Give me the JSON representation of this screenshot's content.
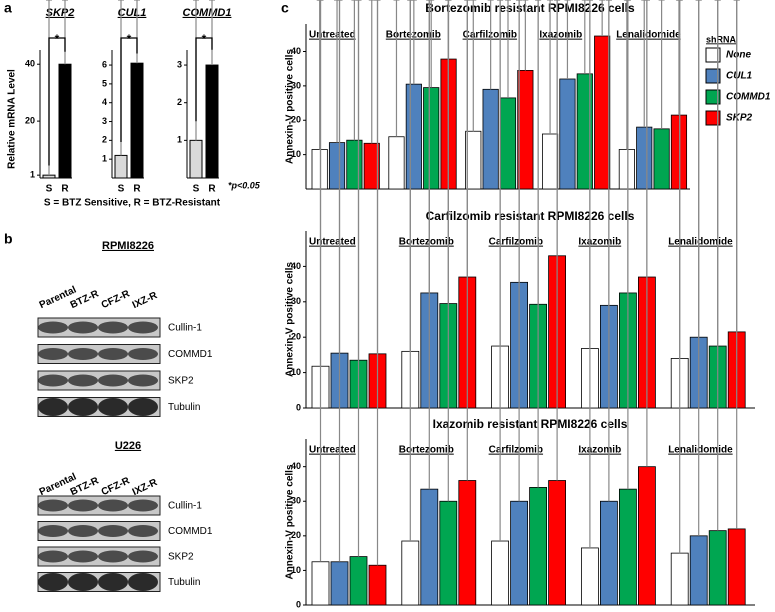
{
  "figure": {
    "panel_labels": [
      "a",
      "b",
      "c"
    ],
    "note": "*p<0.05",
    "footnote": "S = BTZ Sensitive, R = BTZ-Resistant"
  },
  "western_blot": {
    "lanes": [
      "Parental",
      "BTZ-R",
      "CFZ-R",
      "IXZ-R"
    ],
    "panels": [
      {
        "title": "RPMI8226",
        "bands": [
          "Cullin-1",
          "COMMD1",
          "SKP2",
          "Tubulin"
        ]
      },
      {
        "title": "U226",
        "bands": [
          "Cullin-1",
          "COMMD1",
          "SKP2",
          "Tubulin"
        ]
      }
    ]
  },
  "chart_data": [
    {
      "type": "bar",
      "title": "SKP2",
      "ylabel": "Relative mRNA Level",
      "categories": [
        "S",
        "R"
      ],
      "values": [
        1,
        40
      ],
      "errors": [
        2,
        3
      ],
      "colors": [
        "#d9d9d9",
        "#000000"
      ],
      "ylim": [
        0,
        45
      ],
      "yticks": [
        1,
        20,
        40
      ],
      "annotation": "*"
    },
    {
      "type": "bar",
      "title": "CUL1",
      "categories": [
        "S",
        "R"
      ],
      "values": [
        1.2,
        6.1
      ],
      "errors": [
        0.5,
        0.3
      ],
      "colors": [
        "#d9d9d9",
        "#000000"
      ],
      "ylim": [
        0,
        6.8
      ],
      "yticks": [
        1,
        2,
        3,
        4,
        5,
        6
      ],
      "annotation": "*"
    },
    {
      "type": "bar",
      "title": "COMMD1",
      "categories": [
        "S",
        "R"
      ],
      "values": [
        1.0,
        3.0
      ],
      "errors": [
        0.4,
        0.3
      ],
      "colors": [
        "#d9d9d9",
        "#000000"
      ],
      "ylim": [
        0,
        3.4
      ],
      "yticks": [
        1,
        2,
        3
      ],
      "annotation": "*"
    },
    {
      "type": "grouped-bar",
      "title": "Bortezomib resistant RPMI8226 cells",
      "ylabel": "Annexin-V positive cells",
      "legend_title": "shRNA",
      "legend": "right",
      "categories": [
        "Untreated",
        "Bortezomib",
        "Carfilzomib",
        "Ixazomib",
        "Lenalidomide"
      ],
      "ylim": [
        0,
        48
      ],
      "yticks": [
        10,
        20,
        30,
        40
      ],
      "series": [
        {
          "name": "None",
          "color": "#ffffff",
          "values": [
            11.5,
            15.2,
            16.8,
            16.0,
            11.5
          ],
          "errors": [
            2.0,
            1.8,
            3.5,
            2.3,
            1.8
          ]
        },
        {
          "name": "CUL1",
          "color": "#4f81bd",
          "values": [
            13.5,
            30.5,
            29.0,
            32.0,
            18.0
          ],
          "errors": [
            2.5,
            2.8,
            2.8,
            2.0,
            2.0
          ]
        },
        {
          "name": "COMMD1",
          "color": "#00a651",
          "values": [
            14.2,
            29.5,
            26.5,
            33.5,
            17.5
          ],
          "errors": [
            2.2,
            2.5,
            2.5,
            2.5,
            2.0
          ]
        },
        {
          "name": "SKP2",
          "color": "#ff0000",
          "values": [
            13.3,
            37.8,
            34.5,
            44.5,
            21.5
          ],
          "errors": [
            3.0,
            2.2,
            2.2,
            1.5,
            2.3
          ]
        }
      ]
    },
    {
      "type": "grouped-bar",
      "title": "Carfilzomib resistant RPMI8226 cells",
      "ylabel": "Annexin-V positive cells",
      "categories": [
        "Untreated",
        "Bortezomib",
        "Carfilzomib",
        "Ixazomib",
        "Lenalidomide"
      ],
      "ylim": [
        0,
        50
      ],
      "yticks": [
        0,
        10,
        20,
        30,
        40
      ],
      "series": [
        {
          "name": "None",
          "color": "#ffffff",
          "values": [
            11.8,
            16.0,
            17.5,
            16.8,
            14.0
          ],
          "errors": [
            2.0,
            3.0,
            3.5,
            3.3,
            4.0
          ]
        },
        {
          "name": "CUL1",
          "color": "#4f81bd",
          "values": [
            15.5,
            32.5,
            35.5,
            29.0,
            20.0
          ],
          "errors": [
            3.5,
            2.5,
            2.8,
            5.0,
            5.0
          ]
        },
        {
          "name": "COMMD1",
          "color": "#00a651",
          "values": [
            13.5,
            29.5,
            29.3,
            32.5,
            17.5
          ],
          "errors": [
            2.5,
            3.0,
            5.5,
            4.5,
            6.0
          ]
        },
        {
          "name": "SKP2",
          "color": "#ff0000",
          "values": [
            15.3,
            37.0,
            43.0,
            37.0,
            21.5
          ],
          "errors": [
            3.0,
            2.5,
            3.0,
            3.0,
            4.5
          ]
        }
      ]
    },
    {
      "type": "grouped-bar",
      "title": "Ixazomib resistant RPMI8226 cells",
      "ylabel": "Annexin-V positive cells",
      "categories": [
        "Untreated",
        "Bortezomib",
        "Carfilzomib",
        "Ixazomib",
        "Lenalidomide"
      ],
      "ylim": [
        0,
        48
      ],
      "yticks": [
        0,
        10,
        20,
        30,
        40
      ],
      "series": [
        {
          "name": "None",
          "color": "#ffffff",
          "values": [
            12.5,
            18.5,
            18.5,
            16.5,
            15.0
          ],
          "errors": [
            4.0,
            4.0,
            4.0,
            3.5,
            3.0
          ]
        },
        {
          "name": "CUL1",
          "color": "#4f81bd",
          "values": [
            12.5,
            33.5,
            30.0,
            30.0,
            20.0
          ],
          "errors": [
            3.0,
            4.5,
            4.0,
            4.0,
            3.0
          ]
        },
        {
          "name": "COMMD1",
          "color": "#00a651",
          "values": [
            14.0,
            30.0,
            34.0,
            33.5,
            21.5
          ],
          "errors": [
            4.0,
            5.0,
            3.0,
            2.5,
            2.5
          ]
        },
        {
          "name": "SKP2",
          "color": "#ff0000",
          "values": [
            11.5,
            36.0,
            36.0,
            40.0,
            22.0
          ],
          "errors": [
            5.0,
            2.5,
            3.0,
            3.0,
            2.5
          ]
        }
      ]
    }
  ]
}
